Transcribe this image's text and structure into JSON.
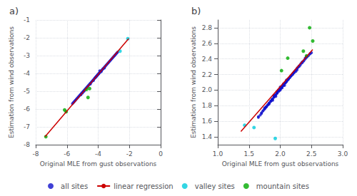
{
  "chart_data": [
    {
      "type": "scatter",
      "title": "a)",
      "xlabel": "Original MLE from gust observations",
      "ylabel": "Estimation from wind observations",
      "xlim": [
        -8,
        0
      ],
      "ylim": [
        -8,
        -1
      ],
      "xticks": [
        -8,
        -6,
        -4,
        -2,
        0
      ],
      "yticks": [
        -8,
        -7,
        -6,
        -5,
        -4,
        -3,
        -2,
        -1
      ],
      "grid": true,
      "legend": "bottom",
      "series": [
        {
          "name": "all sites",
          "type": "scatter",
          "color": "#1010cc",
          "x": [
            -4.05,
            -4.1,
            -4.0,
            -3.95,
            -4.15,
            -4.2,
            -4.25,
            -3.9,
            -3.85,
            -4.3,
            -4.35,
            -4.4,
            -4.45,
            -4.5,
            -3.8,
            -3.75,
            -3.7,
            -3.65,
            -3.6,
            -3.55,
            -3.5,
            -3.45,
            -3.4,
            -3.35,
            -3.3,
            -3.25,
            -3.2,
            -3.15,
            -3.1,
            -3.05,
            -3.0,
            -2.95,
            -2.9,
            -2.85,
            -2.8,
            -2.75,
            -4.55,
            -4.6,
            -4.65,
            -4.7,
            -4.75,
            -4.8,
            -4.85,
            -4.9,
            -4.95,
            -5.0,
            -5.05,
            -5.1,
            -5.15,
            -5.2,
            -5.25,
            -5.3,
            -5.35,
            -5.4,
            -5.45,
            -5.5,
            -5.55,
            -5.6,
            -5.65,
            -4.0,
            -4.1,
            -4.2,
            -3.9,
            -4.05,
            -4.15,
            -3.95,
            -4.3,
            -4.5,
            -3.8,
            -3.7,
            -5.1,
            -5.0,
            -4.9,
            -3.6
          ],
          "values": [
            -4.1,
            -4.15,
            -4.05,
            -4.0,
            -4.2,
            -4.25,
            -4.3,
            -3.95,
            -3.9,
            -4.35,
            -4.4,
            -4.45,
            -4.5,
            -4.55,
            -3.85,
            -3.8,
            -3.75,
            -3.7,
            -3.65,
            -3.6,
            -3.55,
            -3.5,
            -3.45,
            -3.4,
            -3.35,
            -3.3,
            -3.25,
            -3.2,
            -3.15,
            -3.1,
            -3.05,
            -3.0,
            -2.95,
            -2.9,
            -2.85,
            -2.8,
            -4.6,
            -4.65,
            -4.7,
            -4.75,
            -4.8,
            -4.85,
            -4.9,
            -4.95,
            -5.0,
            -5.05,
            -5.1,
            -5.15,
            -5.2,
            -5.25,
            -5.3,
            -5.35,
            -5.4,
            -5.45,
            -5.5,
            -5.55,
            -5.6,
            -5.65,
            -5.7,
            -4.05,
            -4.15,
            -4.25,
            -3.85,
            -4.1,
            -4.2,
            -4.0,
            -4.4,
            -4.6,
            -3.9,
            -3.75,
            -5.2,
            -5.1,
            -5.0,
            -3.7
          ]
        },
        {
          "name": "linear regression",
          "type": "line",
          "color": "#cc0000",
          "x": [
            -7.4,
            -2.05
          ],
          "values": [
            -7.55,
            -2.05
          ]
        },
        {
          "name": "valley sites",
          "type": "scatter",
          "color": "#00ccdd",
          "x": [
            -2.1,
            -2.6
          ],
          "values": [
            -2.05,
            -2.75
          ]
        },
        {
          "name": "mountain sites",
          "type": "scatter",
          "color": "#00aa00",
          "x": [
            -7.35,
            -6.15,
            -6.05,
            -4.75,
            -4.65,
            -4.55
          ],
          "values": [
            -7.55,
            -6.05,
            -6.15,
            -4.9,
            -5.35,
            -4.85
          ]
        }
      ]
    },
    {
      "type": "scatter",
      "title": "b)",
      "xlabel": "Original MLE from gust observations",
      "ylabel": "Estimation from wind observations",
      "xlim": [
        1,
        3
      ],
      "ylim": [
        1.3,
        2.9
      ],
      "xticks": [
        {
          "value": 1,
          "label": "1.0"
        },
        1.5,
        {
          "value": 2,
          "label": "2.0"
        },
        2.5,
        {
          "value": 3,
          "label": "3.0"
        }
      ],
      "yticks": [
        1.4,
        1.6,
        1.8,
        {
          "value": 2.0,
          "label": "2.0"
        },
        2.2,
        2.4,
        2.6,
        2.8
      ],
      "grid": true,
      "legend": "bottom",
      "series": [
        {
          "name": "all sites",
          "type": "scatter",
          "color": "#1010cc",
          "x": [
            1.65,
            1.7,
            1.72,
            1.75,
            1.78,
            1.8,
            1.82,
            1.85,
            1.87,
            1.9,
            1.9,
            1.92,
            1.95,
            1.95,
            1.97,
            2.0,
            2.0,
            2.0,
            2.02,
            2.05,
            2.05,
            2.07,
            2.1,
            2.1,
            2.12,
            2.15,
            2.17,
            2.2,
            2.22,
            2.25,
            2.27,
            2.3,
            2.32,
            2.35,
            2.37,
            2.4,
            2.42,
            2.45,
            2.47,
            2.5,
            1.68,
            1.73,
            1.77,
            1.83,
            1.88,
            1.93,
            1.98,
            2.03,
            2.08,
            2.13,
            2.18,
            2.23,
            2.28,
            2.33,
            2.38,
            2.43,
            2.48,
            1.88,
            1.93,
            1.82,
            2.07,
            1.75,
            1.95,
            2.03,
            1.9,
            2.1,
            2.0,
            1.85,
            2.15,
            2.05,
            1.95,
            1.87,
            2.02,
            1.77,
            2.12,
            1.8,
            1.85,
            2.2,
            1.75,
            2.25,
            2.3,
            2.0,
            1.9,
            1.95,
            2.05,
            2.1,
            1.82,
            1.78,
            2.35,
            2.4,
            2.22,
            2.27,
            1.97,
            1.92,
            2.08,
            2.13,
            1.7,
            2.17,
            2.42,
            1.65
          ],
          "values": [
            1.65,
            1.7,
            1.73,
            1.76,
            1.79,
            1.81,
            1.83,
            1.86,
            1.88,
            1.91,
            1.93,
            1.94,
            1.96,
            1.98,
            2.0,
            2.0,
            2.02,
            2.04,
            2.04,
            2.06,
            2.08,
            2.09,
            2.11,
            2.13,
            2.14,
            2.16,
            2.18,
            2.2,
            2.22,
            2.24,
            2.26,
            2.3,
            2.32,
            2.35,
            2.37,
            2.4,
            2.42,
            2.44,
            2.46,
            2.48,
            1.68,
            1.74,
            1.78,
            1.84,
            1.89,
            1.94,
            1.99,
            2.04,
            2.09,
            2.14,
            2.19,
            2.24,
            2.29,
            2.34,
            2.38,
            2.43,
            2.47,
            1.87,
            1.92,
            1.82,
            2.06,
            1.76,
            1.96,
            2.03,
            1.91,
            2.12,
            2.01,
            1.86,
            2.16,
            2.06,
            1.97,
            1.88,
            2.03,
            1.78,
            2.13,
            1.81,
            1.86,
            2.21,
            1.77,
            2.26,
            2.31,
            2.01,
            1.92,
            1.97,
            2.06,
            2.11,
            1.83,
            1.79,
            2.36,
            2.41,
            2.23,
            2.28,
            1.98,
            1.93,
            2.09,
            2.14,
            1.71,
            2.18,
            2.43,
            1.66
          ]
        },
        {
          "name": "linear regression",
          "type": "line",
          "color": "#cc0000",
          "x": [
            1.37,
            2.52
          ],
          "values": [
            1.47,
            2.52
          ]
        },
        {
          "name": "valley sites",
          "type": "scatter",
          "color": "#00ccdd",
          "x": [
            1.43,
            1.58,
            1.92
          ],
          "values": [
            1.55,
            1.52,
            1.38
          ]
        },
        {
          "name": "mountain sites",
          "type": "scatter",
          "color": "#00aa00",
          "x": [
            2.47,
            2.52,
            2.02,
            2.12,
            2.37,
            2.42
          ],
          "values": [
            2.8,
            2.63,
            2.25,
            2.41,
            2.5,
            2.44
          ]
        }
      ]
    }
  ]
}
